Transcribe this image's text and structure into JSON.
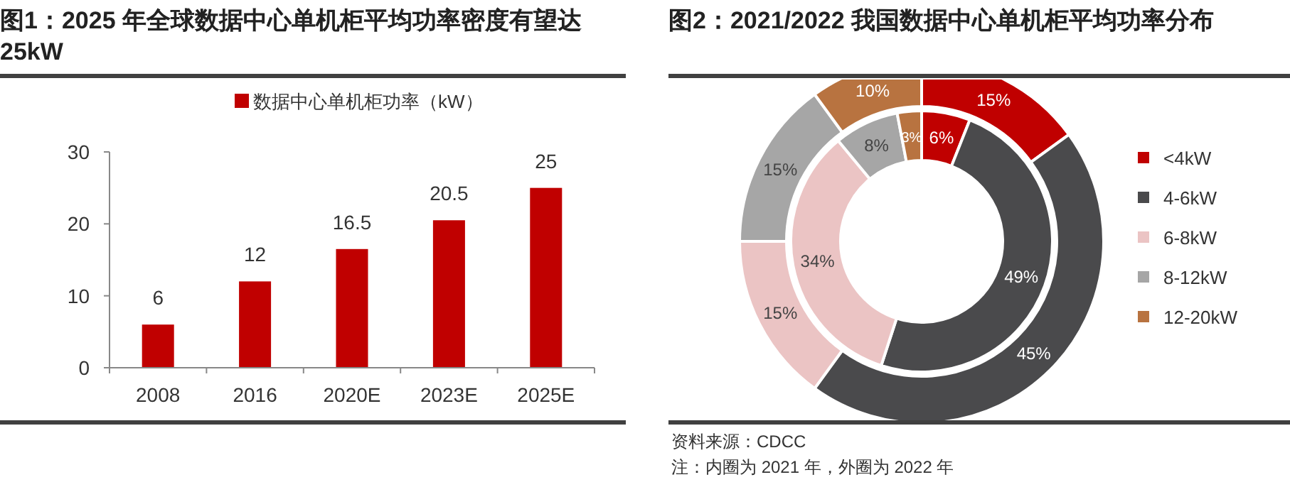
{
  "chart_data": [
    {
      "type": "bar",
      "title": "图1：2025 年全球数据中心单机柜平均功率密度有望达 25kW",
      "categories": [
        "2008",
        "2016",
        "2020E",
        "2023E",
        "2025E"
      ],
      "series": [
        {
          "name": "数据中心单机柜功率（kW）",
          "color": "#c00000",
          "values": [
            6,
            12,
            16.5,
            20.5,
            25
          ]
        }
      ],
      "ylim": [
        0,
        30
      ],
      "yticks": [
        0,
        10,
        20,
        30
      ],
      "data_labels": true,
      "legend": "top",
      "grid": false
    },
    {
      "type": "donut",
      "title": "图2：2021/2022 我国数据中心单机柜平均功率分布",
      "categories": [
        "<4kW",
        "4-6kW",
        "6-8kW",
        "8-12kW",
        "12-20kW"
      ],
      "colors": [
        "#c00000",
        "#4a4a4c",
        "#ebc4c4",
        "#a6a6a6",
        "#b87340"
      ],
      "series": [
        {
          "values": [
            6,
            49,
            34,
            8,
            3
          ],
          "value_labels": [
            "6%",
            "49%",
            "34%",
            "8%",
            "3%"
          ]
        },
        {
          "values": [
            15,
            45,
            15,
            15,
            10
          ],
          "value_labels": [
            "15%",
            "45%",
            "15%",
            "15%",
            "10%"
          ]
        }
      ],
      "legend": "right",
      "annotations": [
        "资料来源：CDCC",
        "注：内圈为 2021 年，外圈为 2022 年"
      ]
    }
  ]
}
